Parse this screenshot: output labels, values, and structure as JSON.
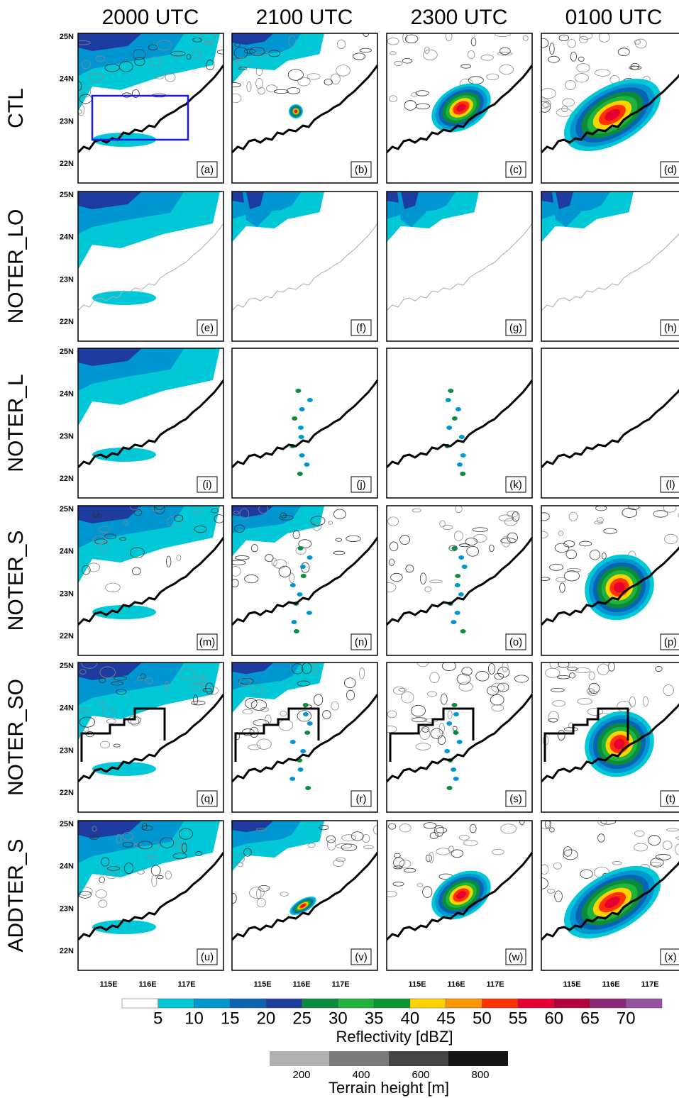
{
  "columns": [
    "2000 UTC",
    "2100 UTC",
    "2300 UTC",
    "0100 UTC"
  ],
  "rows": [
    {
      "label": "CTL",
      "panels": [
        "(a)",
        "(b)",
        "(c)",
        "(d)"
      ]
    },
    {
      "label": "NOTER_LO",
      "panels": [
        "(e)",
        "(f)",
        "(g)",
        "(h)"
      ]
    },
    {
      "label": "NOTER_L",
      "panels": [
        "(i)",
        "(j)",
        "(k)",
        "(l)"
      ]
    },
    {
      "label": "NOTER_S",
      "panels": [
        "(m)",
        "(n)",
        "(o)",
        "(p)"
      ]
    },
    {
      "label": "NOTER_SO",
      "panels": [
        "(q)",
        "(r)",
        "(s)",
        "(t)"
      ]
    },
    {
      "label": "ADDTER_S",
      "panels": [
        "(u)",
        "(v)",
        "(w)",
        "(x)"
      ]
    }
  ],
  "lat_labels": [
    "25N",
    "24N",
    "23N",
    "22N"
  ],
  "lon_labels": [
    "115E",
    "116E",
    "117E"
  ],
  "reflectivity_bar": {
    "ticks": [
      5,
      10,
      15,
      20,
      25,
      30,
      35,
      40,
      45,
      50,
      55,
      60,
      65,
      70
    ],
    "title": "Reflectivity [dBZ]"
  },
  "terrain_bar": {
    "ticks": [
      200,
      400,
      600,
      800
    ],
    "title": "Terrain height [m]"
  }
}
